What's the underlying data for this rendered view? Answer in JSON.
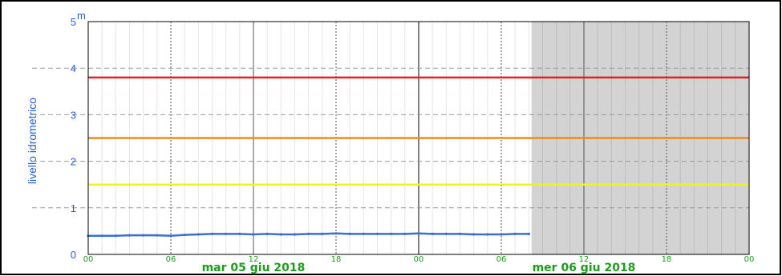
{
  "chart_data": {
    "type": "line",
    "unit_label": "m",
    "ylabel": "livello idrometrico",
    "ylim": [
      0,
      5
    ],
    "y_ticks": [
      "0",
      "1",
      "2",
      "3",
      "4",
      "5"
    ],
    "x_ticks": [
      "00",
      "06",
      "12",
      "18",
      "00",
      "06",
      "12",
      "18",
      "00"
    ],
    "day_labels": [
      "mar 05 giu 2018",
      "mer 06 giu 2018"
    ],
    "x_range_hours": [
      0,
      48
    ],
    "shaded_from_hour": 32.2,
    "colors": {
      "series": "#3b6fd4",
      "threshold_red": "#e8201e",
      "threshold_orange": "#f08a1c",
      "threshold_yellow": "#f2f21e",
      "shade": "#d3d3d3",
      "axis_text": "#1f9b1f",
      "y_text": "#2a5fd6"
    },
    "thresholds": [
      {
        "level": "red",
        "value": 3.8
      },
      {
        "level": "orange",
        "value": 2.5
      },
      {
        "level": "yellow",
        "value": 1.5
      }
    ],
    "series": [
      {
        "x": [
          0,
          1,
          2,
          3,
          4,
          5,
          6,
          7,
          8,
          9,
          10,
          11,
          12,
          13,
          14,
          15,
          16,
          17,
          18,
          19,
          20,
          21,
          22,
          23,
          24,
          25,
          26,
          27,
          28,
          29,
          30,
          31,
          32
        ],
        "values": [
          0.4,
          0.4,
          0.4,
          0.41,
          0.41,
          0.41,
          0.4,
          0.42,
          0.43,
          0.44,
          0.44,
          0.44,
          0.43,
          0.44,
          0.43,
          0.43,
          0.44,
          0.44,
          0.45,
          0.44,
          0.44,
          0.44,
          0.44,
          0.44,
          0.45,
          0.44,
          0.44,
          0.44,
          0.43,
          0.43,
          0.43,
          0.44,
          0.44
        ]
      }
    ]
  }
}
